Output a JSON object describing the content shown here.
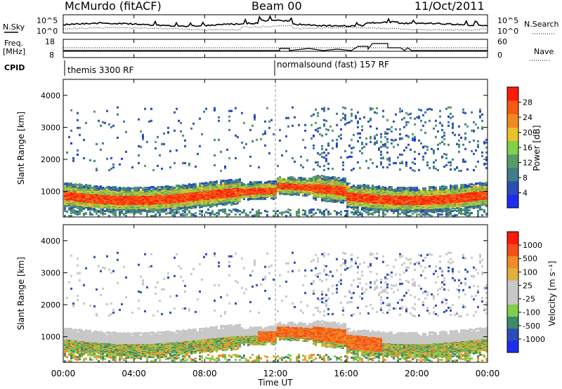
{
  "header": {
    "station": "McMurdo (fitACF)",
    "beam": "Beam 00",
    "date": "11/Oct/2011"
  },
  "top_panel": {
    "left_label": "N.Sky",
    "right_label": "N.Search",
    "left_ticks": [
      "10^5",
      "10^0"
    ],
    "right_ticks": [
      "10^5",
      "10^0"
    ]
  },
  "freq_panel": {
    "left_label_1": "Freq.",
    "left_label_2": "[MHz]",
    "left_ticks": [
      "18",
      "8"
    ],
    "right_label": "Nave",
    "right_ticks": [
      "60",
      "0"
    ]
  },
  "cpid_panel": {
    "label": "CPID",
    "mode_1": "themis 3300 RF",
    "mode_2": "normalsound (fast) 157 RF"
  },
  "colors": {
    "power_scale": [
      "#1e2bf0",
      "#2a4db8",
      "#3f7d8a",
      "#5a9a66",
      "#7fd04a",
      "#e8c22a",
      "#f08a20",
      "#f55a14",
      "#ff1a0a"
    ],
    "velocity_scale": [
      "#ff1a0a",
      "#f5501a",
      "#f08c24",
      "#e0b040",
      "#c8c8c8",
      "#c8c8c8",
      "#7fd04a",
      "#3f8a6a",
      "#2a4db8",
      "#1e2bf0"
    ]
  },
  "chart_data": [
    {
      "type": "heatmap",
      "title": "Power",
      "xlabel": "",
      "ylabel": "Slant Range [km]",
      "x_range": [
        "00:00",
        "24:00"
      ],
      "ylim": [
        200,
        4500
      ],
      "y_ticks": [
        "4000",
        "3000",
        "2000",
        "1000"
      ],
      "colorbar_label": "Power [dB]",
      "colorbar_ticks": [
        "28",
        "24",
        "20",
        "16",
        "12",
        "8",
        "4"
      ],
      "colorbar_range": [
        0,
        32
      ]
    },
    {
      "type": "heatmap",
      "title": "Velocity",
      "xlabel": "Time UT",
      "ylabel": "Slant Range [km]",
      "x_range": [
        "00:00",
        "24:00"
      ],
      "x_ticks": [
        "00:00",
        "04:00",
        "08:00",
        "12:00",
        "16:00",
        "20:00",
        "00:00"
      ],
      "ylim": [
        200,
        4500
      ],
      "y_ticks": [
        "4000",
        "3000",
        "2000",
        "1000"
      ],
      "colorbar_label": "Velocity [m s⁻¹]",
      "colorbar_ticks": [
        "1000",
        "500",
        "100",
        "25",
        "-25",
        "-100",
        "-500",
        "-1000"
      ]
    }
  ]
}
